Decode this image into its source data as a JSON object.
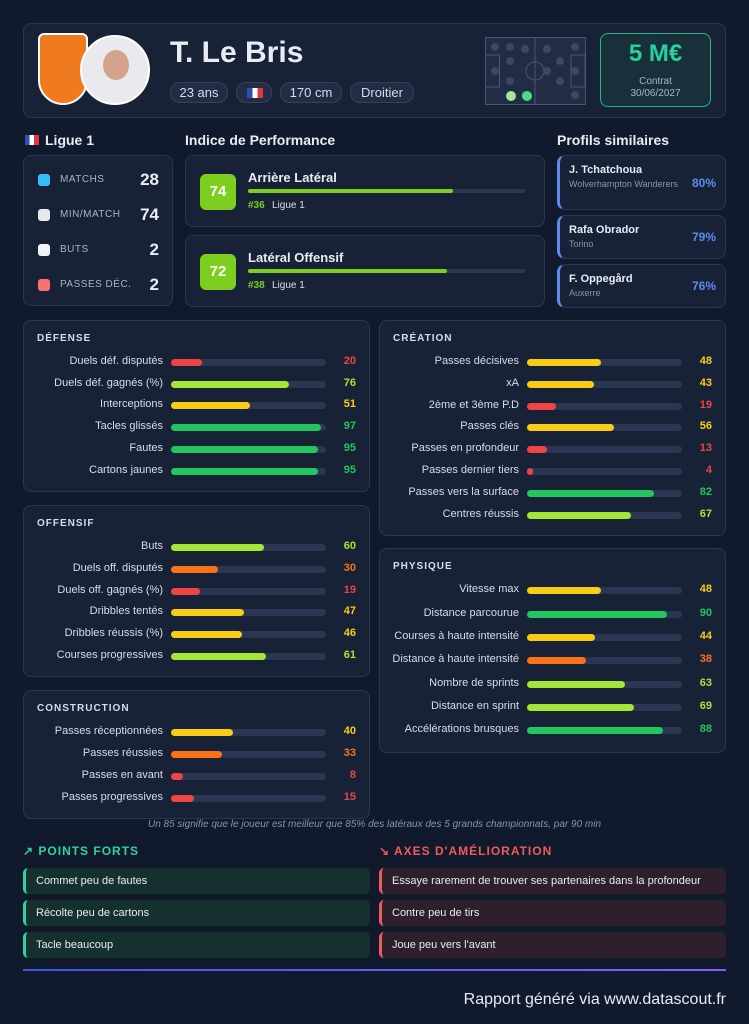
{
  "header": {
    "name": "T. Le Bris",
    "age": "23 ans",
    "height": "170 cm",
    "foot": "Droitier",
    "value": "5 M€",
    "contract_label": "Contrat",
    "contract_date": "30/06/2027"
  },
  "league": {
    "title": "Ligue 1",
    "stats": [
      {
        "label": "MATCHS",
        "value": 28
      },
      {
        "label": "MIN/MATCH",
        "value": 74
      },
      {
        "label": "BUTS",
        "value": 2
      },
      {
        "label": "PASSES DÉC.",
        "value": 2
      }
    ]
  },
  "performance": {
    "title": "Indice de Performance",
    "items": [
      {
        "score": 74,
        "role": "Arrière Latéral",
        "rank": "#36",
        "league": "Ligue 1"
      },
      {
        "score": 72,
        "role": "Latéral Offensif",
        "rank": "#38",
        "league": "Ligue 1"
      }
    ]
  },
  "similar": {
    "title": "Profils similaires",
    "items": [
      {
        "name": "J. Tchatchoua",
        "club": "Wolverhampton Wanderers",
        "match": "80%"
      },
      {
        "name": "Rafa Obrador",
        "club": "Torino",
        "match": "79%"
      },
      {
        "name": "F. Oppegård",
        "club": "Auxerre",
        "match": "76%"
      }
    ]
  },
  "stats_left": [
    {
      "title": "DÉFENSE",
      "rows": [
        {
          "label": "Duels déf. disputés",
          "value": 20
        },
        {
          "label": "Duels déf. gagnés (%)",
          "value": 76
        },
        {
          "label": "Interceptions",
          "value": 51
        },
        {
          "label": "Tacles glissés",
          "value": 97
        },
        {
          "label": "Fautes",
          "value": 95
        },
        {
          "label": "Cartons jaunes",
          "value": 95
        }
      ]
    },
    {
      "title": "OFFENSIF",
      "rows": [
        {
          "label": "Buts",
          "value": 60
        },
        {
          "label": "Duels off. disputés",
          "value": 30
        },
        {
          "label": "Duels off. gagnés (%)",
          "value": 19
        },
        {
          "label": "Dribbles tentés",
          "value": 47
        },
        {
          "label": "Dribbles réussis (%)",
          "value": 46
        },
        {
          "label": "Courses progressives",
          "value": 61
        }
      ]
    },
    {
      "title": "CONSTRUCTION",
      "rows": [
        {
          "label": "Passes réceptionnées",
          "value": 40
        },
        {
          "label": "Passes réussies",
          "value": 33
        },
        {
          "label": "Passes en avant",
          "value": 8
        },
        {
          "label": "Passes progressives",
          "value": 15
        }
      ]
    }
  ],
  "stats_right": [
    {
      "title": "CRÉATION",
      "rows": [
        {
          "label": "Passes décisives",
          "value": 48
        },
        {
          "label": "xA",
          "value": 43
        },
        {
          "label": "2ème et 3ème P.D",
          "value": 19
        },
        {
          "label": "Passes clés",
          "value": 56
        },
        {
          "label": "Passes en profondeur",
          "value": 13
        },
        {
          "label": "Passes dernier tiers",
          "value": 4
        },
        {
          "label": "Passes vers la surface",
          "value": 82
        },
        {
          "label": "Centres réussis",
          "value": 67
        }
      ]
    },
    {
      "title": "PHYSIQUE",
      "rows": [
        {
          "label": "Vitesse max",
          "value": 48
        },
        {
          "label": "Distance parcourue",
          "value": 90
        },
        {
          "label": "Courses à haute intensité",
          "value": 44
        },
        {
          "label": "Distance à haute intensité",
          "value": 38
        },
        {
          "label": "Nombre de sprints",
          "value": 63
        },
        {
          "label": "Distance en sprint",
          "value": 69
        },
        {
          "label": "Accélérations brusques",
          "value": 88
        }
      ]
    }
  ],
  "footnote": "Un 85 signifie que le joueur est meilleur que 85% des latéraux des 5 grands championnats, par 90 min",
  "strengths": {
    "title": "POINTS FORTS",
    "items": [
      "Commet peu de fautes",
      "Récolte peu de cartons",
      "Tacle beaucoup"
    ]
  },
  "improvements": {
    "title": "AXES D'AMÉLIORATION",
    "items": [
      "Essaye rarement de trouver ses partenaires dans la profondeur",
      "Contre peu de tirs",
      "Joue peu vers l'avant"
    ]
  },
  "footer": "Rapport généré via www.datascout.fr"
}
